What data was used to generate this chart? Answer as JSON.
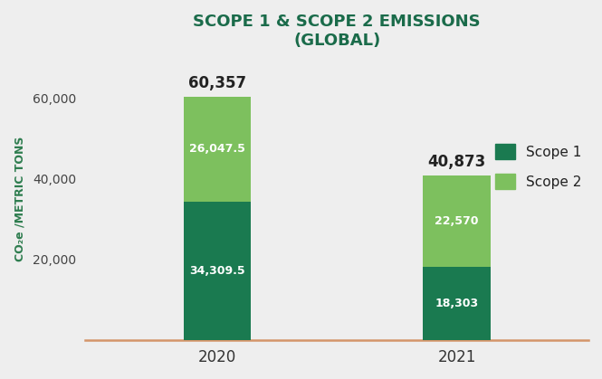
{
  "title_line1": "SCOPE 1 & SCOPE 2 EMISSIONS",
  "title_line2": "(GLOBAL)",
  "title_color": "#1a6b4a",
  "title_fontsize": 13,
  "ylabel": "CO₂e /METRIC TONS",
  "ylabel_color": "#2e7d4f",
  "categories": [
    "2020",
    "2021"
  ],
  "scope1_values": [
    34309.5,
    18303
  ],
  "scope2_values": [
    26047.5,
    22570
  ],
  "totals": [
    60357,
    40873
  ],
  "scope1_color": "#1a7a50",
  "scope2_color": "#7dc05e",
  "bar_width": 0.28,
  "ylim": [
    0,
    70000
  ],
  "yticks": [
    20000,
    40000,
    60000
  ],
  "ytick_labels": [
    "20,000",
    "40,000",
    "60,000"
  ],
  "background_color": "#eeeeee",
  "axis_bottom_color": "#d4956a",
  "legend_scope1": "Scope 1",
  "legend_scope2": "Scope 2",
  "total_label_fontsize": 12,
  "value_label_fontsize": 9,
  "value_label_color": "white",
  "total_label_color": "#222222",
  "xlabel_fontsize": 12,
  "ylabel_fontsize": 9
}
